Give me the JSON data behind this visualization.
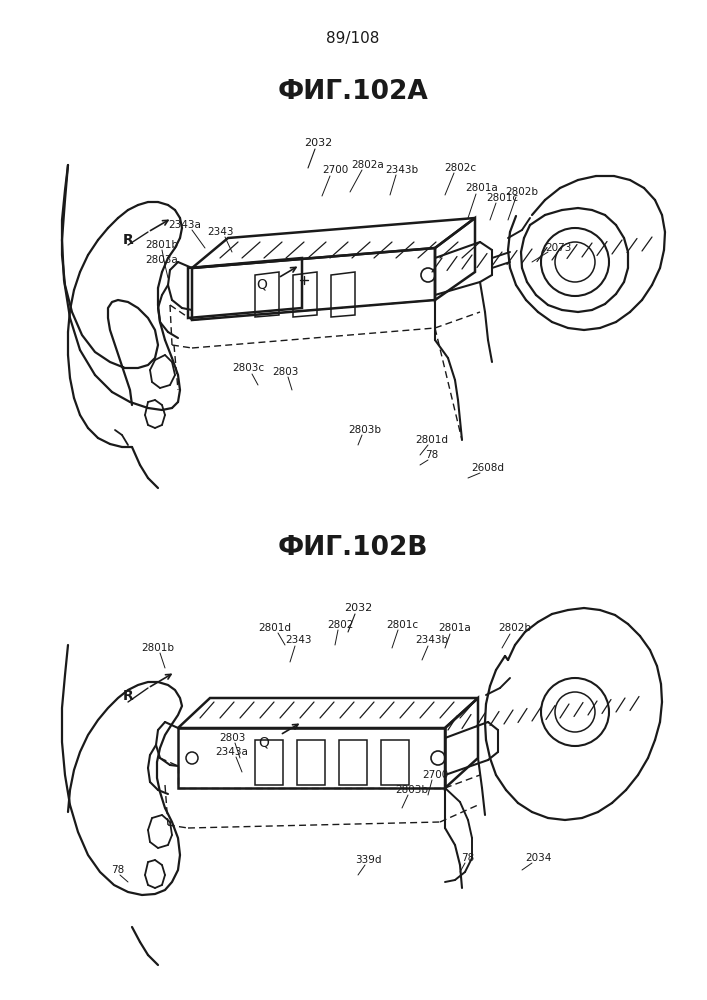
{
  "page_number": "89/108",
  "fig_a_title": "ФИГ.102A",
  "fig_b_title": "ФИГ.102B",
  "bg": "#ffffff",
  "lc": "#1a1a1a"
}
